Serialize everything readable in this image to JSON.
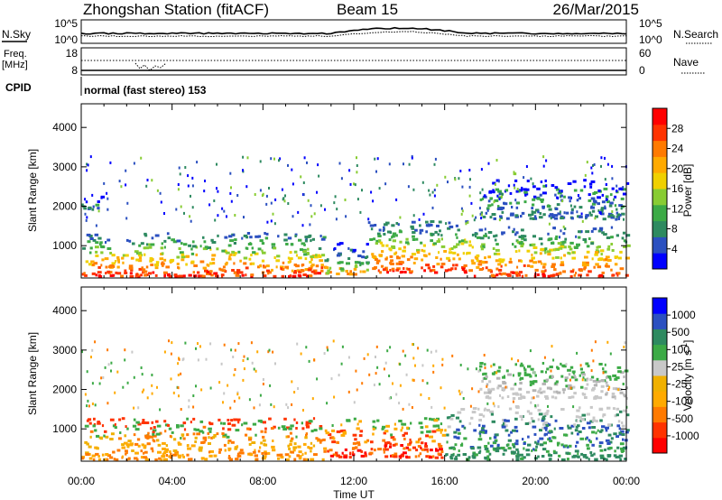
{
  "header": {
    "station": "Zhongshan Station (fitACF)",
    "beam": "Beam 15",
    "date": "26/Mar/2015"
  },
  "summary_panels": {
    "nsky_label": "N.Sky",
    "nsearch_label": "N.Search",
    "noise_ticks": [
      "10^5",
      "10^0"
    ],
    "freq_label_line1": "Freq.",
    "freq_label_line2": "[MHz]",
    "freq_ticks": [
      "18",
      "8"
    ],
    "nave_label": "Nave",
    "nave_ticks": [
      "60",
      "0"
    ],
    "cpid_label": "CPID",
    "cpid_text": "normal (fast stereo) 153"
  },
  "chart_data": [
    {
      "type": "heatmap",
      "id": "power",
      "title": "",
      "xlabel": "Time UT",
      "ylabel": "Slant Range [km]",
      "x_ticks": [
        "00:00",
        "04:00",
        "08:00",
        "12:00",
        "16:00",
        "20:00",
        "00:00"
      ],
      "xlim_hours": [
        0,
        24
      ],
      "y_ticks": [
        1000,
        2000,
        3000,
        4000
      ],
      "ylim": [
        180,
        4600
      ],
      "colorbar": {
        "label": "Power [dB]",
        "ticks": [
          "28",
          "24",
          "20",
          "16",
          "12",
          "8",
          "4"
        ],
        "colors": [
          "#0000ff",
          "#2b50c0",
          "#2e8a60",
          "#3caa46",
          "#88cc33",
          "#f0d000",
          "#ffaa00",
          "#ff7a00",
          "#ff3300",
          "#ff0000"
        ]
      },
      "regions": [
        {
          "t0": 0.0,
          "t1": 10.7,
          "r0": 250,
          "r1": 1350,
          "level": "high"
        },
        {
          "t0": 10.7,
          "t1": 12.6,
          "r0": 300,
          "r1": 1100,
          "level": "mid"
        },
        {
          "t0": 12.6,
          "t1": 17.2,
          "r0": 350,
          "r1": 1650,
          "level": "high"
        },
        {
          "t0": 17.2,
          "t1": 24.0,
          "r0": 250,
          "r1": 1500,
          "level": "high"
        },
        {
          "t0": 0.0,
          "t1": 1.2,
          "r0": 1950,
          "r1": 2300,
          "level": "low"
        },
        {
          "t0": 17.5,
          "t1": 24.0,
          "r0": 1700,
          "r1": 2700,
          "level": "low"
        }
      ]
    },
    {
      "type": "heatmap",
      "id": "velocity",
      "title": "",
      "xlabel": "Time UT",
      "ylabel": "Slant Range [km]",
      "x_ticks": [
        "00:00",
        "04:00",
        "08:00",
        "12:00",
        "16:00",
        "20:00",
        "00:00"
      ],
      "xlim_hours": [
        0,
        24
      ],
      "y_ticks": [
        1000,
        2000,
        3000,
        4000
      ],
      "ylim": [
        180,
        4600
      ],
      "colorbar": {
        "label": "Velocity [m s^-1]",
        "ticks": [
          "1000",
          "500",
          "100",
          "25",
          "-25",
          "-100",
          "-500",
          "-1000"
        ],
        "colors": [
          "#ff0000",
          "#ff3300",
          "#ff7a00",
          "#ffaa00",
          "#f0b000",
          "#c8c8c8",
          "#3caa46",
          "#2e8a60",
          "#2b50c0",
          "#0000ff"
        ]
      },
      "regions": [
        {
          "t0": 0.0,
          "t1": 10.7,
          "r0": 250,
          "r1": 1300,
          "level": "negative"
        },
        {
          "t0": 10.7,
          "t1": 16.0,
          "r0": 300,
          "r1": 1300,
          "level": "strong-negative"
        },
        {
          "t0": 16.0,
          "t1": 24.0,
          "r0": 250,
          "r1": 1600,
          "level": "positive"
        },
        {
          "t0": 17.5,
          "t1": 24.0,
          "r0": 1800,
          "r1": 2700,
          "level": "near-zero"
        }
      ]
    }
  ]
}
